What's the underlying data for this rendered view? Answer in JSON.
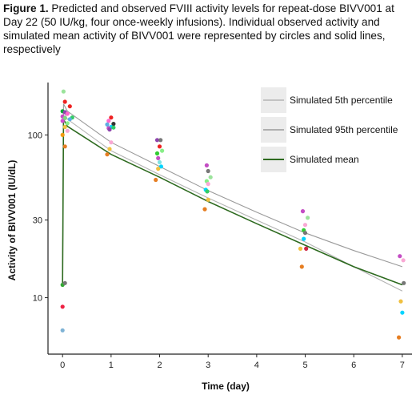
{
  "caption": {
    "label": "Figure 1.",
    "text": " Predicted and observed FVIII activity levels for repeat-dose BIVV001 at Day 22 (50 IU/kg, four once-weekly infusions). Individual observed activity and simulated mean activity of BIVV001 were represented by circles and solid lines, respectively"
  },
  "chart_data": {
    "type": "line",
    "xlabel": "Time (day)",
    "ylabel": "Activity of BIVV001 (IU/dL)",
    "xlim": [
      -0.3,
      7.2
    ],
    "ylim": [
      4.5,
      210
    ],
    "y_scale": "log",
    "x_ticks": [
      0,
      1,
      2,
      3,
      4,
      5,
      6,
      7
    ],
    "y_ticks": [
      10,
      30,
      100
    ],
    "grid": false,
    "legend_position": "top-right",
    "colors": {
      "p5": "#b3b3b3",
      "p95": "#9a9a9a",
      "mean": "#2d6a1f"
    },
    "series": [
      {
        "name": "Simulated 5th percentile",
        "color": "#b3b3b3",
        "x": [
          0,
          0.02,
          0.1,
          1,
          2,
          3,
          4,
          5,
          6,
          7
        ],
        "y": [
          12,
          140,
          125,
          80,
          57,
          41,
          30,
          22,
          15.5,
          11
        ]
      },
      {
        "name": "Simulated 95th percentile",
        "color": "#9a9a9a",
        "x": [
          0,
          0.02,
          0.1,
          1,
          2,
          3,
          4,
          5,
          6,
          7
        ],
        "y": [
          12,
          155,
          140,
          90,
          64,
          45.5,
          33.5,
          25,
          19.5,
          15.5
        ]
      },
      {
        "name": "Simulated mean",
        "color": "#2d6a1f",
        "x": [
          0,
          0.02,
          0.1,
          1,
          2,
          3,
          4,
          5,
          6,
          7
        ],
        "y": [
          12,
          125,
          113,
          76,
          55,
          39,
          28.5,
          21,
          15.5,
          12
        ]
      }
    ],
    "observed": [
      {
        "x": 0.02,
        "y": 185,
        "color": "#9be39b"
      },
      {
        "x": 0.05,
        "y": 160,
        "color": "#ee2222"
      },
      {
        "x": 0.15,
        "y": 150,
        "color": "#ee2222"
      },
      {
        "x": 0.0,
        "y": 140,
        "color": "#00aa33"
      },
      {
        "x": 0.05,
        "y": 138,
        "color": "#8e44ad"
      },
      {
        "x": 0.1,
        "y": 135,
        "color": "#ff66cc"
      },
      {
        "x": 0.0,
        "y": 130,
        "color": "#c44dc4"
      },
      {
        "x": 0.2,
        "y": 128,
        "color": "#33cc66"
      },
      {
        "x": 0.05,
        "y": 127,
        "color": "#7cd87c"
      },
      {
        "x": 0.15,
        "y": 125,
        "color": "#5dade2"
      },
      {
        "x": 0.0,
        "y": 122,
        "color": "#d14fd1"
      },
      {
        "x": 0.1,
        "y": 118,
        "color": "#88ee88"
      },
      {
        "x": 0.05,
        "y": 112,
        "color": "#f0c040"
      },
      {
        "x": 0.1,
        "y": 106,
        "color": "#f9a8d4"
      },
      {
        "x": 0.0,
        "y": 100,
        "color": "#f39c12"
      },
      {
        "x": 0.05,
        "y": 85,
        "color": "#e67e22"
      },
      {
        "x": 0.0,
        "y": 12,
        "color": "#33aa33"
      },
      {
        "x": 0.05,
        "y": 12.3,
        "color": "#777777"
      },
      {
        "x": 0.0,
        "y": 8.8,
        "color": "#ee2244"
      },
      {
        "x": 0.0,
        "y": 6.3,
        "color": "#7fb3d5"
      },
      {
        "x": 1.0,
        "y": 128,
        "color": "#ee2222"
      },
      {
        "x": 0.95,
        "y": 122,
        "color": "#ff66cc"
      },
      {
        "x": 1.05,
        "y": 117,
        "color": "#333333"
      },
      {
        "x": 0.92,
        "y": 116,
        "color": "#5dade2"
      },
      {
        "x": 1.0,
        "y": 112,
        "color": "#00d4ff"
      },
      {
        "x": 0.95,
        "y": 110,
        "color": "#c44dc4"
      },
      {
        "x": 1.05,
        "y": 111,
        "color": "#33cc66"
      },
      {
        "x": 0.97,
        "y": 108,
        "color": "#8e44ad"
      },
      {
        "x": 1.0,
        "y": 90,
        "color": "#f9a8d4"
      },
      {
        "x": 0.97,
        "y": 82,
        "color": "#f0c040"
      },
      {
        "x": 0.92,
        "y": 76,
        "color": "#e67e22"
      },
      {
        "x": 1.95,
        "y": 93,
        "color": "#8e44ad"
      },
      {
        "x": 2.02,
        "y": 93,
        "color": "#777777"
      },
      {
        "x": 2.0,
        "y": 85,
        "color": "#ee2222"
      },
      {
        "x": 2.05,
        "y": 80,
        "color": "#88ee88"
      },
      {
        "x": 1.95,
        "y": 77,
        "color": "#33cc33"
      },
      {
        "x": 1.97,
        "y": 72,
        "color": "#c44dc4"
      },
      {
        "x": 2.0,
        "y": 68,
        "color": "#7fe3e3"
      },
      {
        "x": 2.03,
        "y": 64,
        "color": "#00d4ff"
      },
      {
        "x": 1.97,
        "y": 62,
        "color": "#f0c040"
      },
      {
        "x": 1.92,
        "y": 53,
        "color": "#e67e22"
      },
      {
        "x": 2.97,
        "y": 65,
        "color": "#c44dc4"
      },
      {
        "x": 3.0,
        "y": 60,
        "color": "#777777"
      },
      {
        "x": 3.05,
        "y": 55,
        "color": "#9be39b"
      },
      {
        "x": 2.97,
        "y": 52,
        "color": "#88ee88"
      },
      {
        "x": 3.0,
        "y": 50,
        "color": "#f9a8d4"
      },
      {
        "x": 2.95,
        "y": 46,
        "color": "#00d4ff"
      },
      {
        "x": 2.98,
        "y": 45,
        "color": "#33cc66"
      },
      {
        "x": 3.0,
        "y": 40,
        "color": "#f0c040"
      },
      {
        "x": 2.93,
        "y": 35,
        "color": "#e67e22"
      },
      {
        "x": 4.95,
        "y": 34,
        "color": "#c44dc4"
      },
      {
        "x": 5.05,
        "y": 31,
        "color": "#9be39b"
      },
      {
        "x": 5.0,
        "y": 28,
        "color": "#f9a8d4"
      },
      {
        "x": 4.97,
        "y": 26,
        "color": "#33cc33"
      },
      {
        "x": 5.0,
        "y": 25,
        "color": "#777777"
      },
      {
        "x": 4.97,
        "y": 23,
        "color": "#00d4ff"
      },
      {
        "x": 4.9,
        "y": 20,
        "color": "#f0c040"
      },
      {
        "x": 5.02,
        "y": 20,
        "color": "#cc2244"
      },
      {
        "x": 4.93,
        "y": 15.5,
        "color": "#e67e22"
      },
      {
        "x": 6.95,
        "y": 18,
        "color": "#c44dc4"
      },
      {
        "x": 7.02,
        "y": 17,
        "color": "#f9a8d4"
      },
      {
        "x": 7.03,
        "y": 12.3,
        "color": "#777777"
      },
      {
        "x": 6.97,
        "y": 9.5,
        "color": "#f0c040"
      },
      {
        "x": 7.0,
        "y": 8.1,
        "color": "#00d4ff"
      },
      {
        "x": 6.93,
        "y": 5.7,
        "color": "#e67e22"
      }
    ]
  }
}
